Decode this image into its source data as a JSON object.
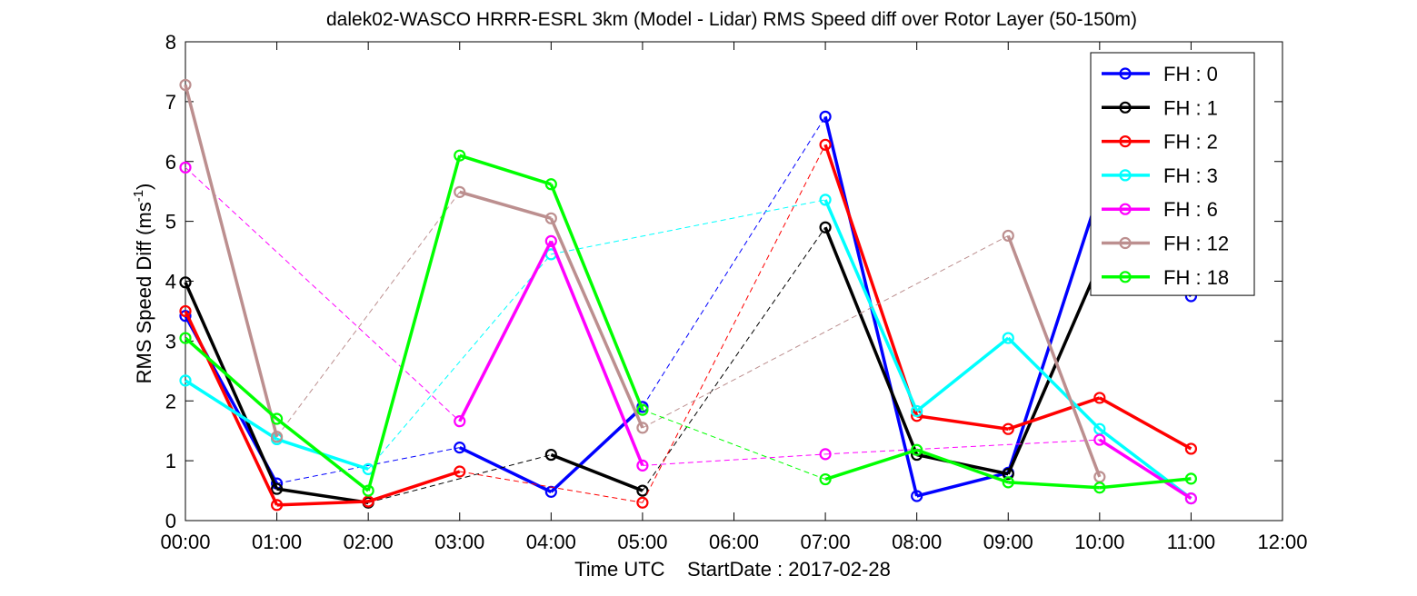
{
  "chart_data": {
    "type": "line",
    "title": "dalek02-WASCO HRRR-ESRL 3km (Model - Lidar) RMS Speed diff over Rotor Layer (50-150m)",
    "xlabel": "Time UTC    StartDate : 2017-02-28",
    "ylabel": "RMS Speed Diff (ms",
    "ylabel_sup": "-1",
    "ylabel_suffix": ")",
    "xlim": [
      0,
      12
    ],
    "ylim": [
      0,
      8
    ],
    "xticks": [
      0,
      1,
      2,
      3,
      4,
      5,
      6,
      7,
      8,
      9,
      10,
      11,
      12
    ],
    "xtick_labels": [
      "00:00",
      "01:00",
      "02:00",
      "03:00",
      "04:00",
      "05:00",
      "06:00",
      "07:00",
      "08:00",
      "09:00",
      "10:00",
      "11:00",
      "12:00"
    ],
    "yticks": [
      0,
      1,
      2,
      3,
      4,
      5,
      6,
      7,
      8
    ],
    "ytick_labels": [
      "0",
      "1",
      "2",
      "3",
      "4",
      "5",
      "6",
      "7",
      "8"
    ],
    "grid": false,
    "legend_position": "top-right",
    "series": [
      {
        "name": "FH : 0",
        "color": "#0000ff",
        "x": [
          0,
          1,
          2,
          3,
          4,
          5,
          6,
          7,
          8,
          9,
          10,
          11
        ],
        "values": [
          3.42,
          0.62,
          null,
          1.22,
          0.48,
          1.9,
          null,
          6.75,
          0.41,
          0.8,
          5.5,
          3.75
        ]
      },
      {
        "name": "FH : 1",
        "color": "#000000",
        "x": [
          0,
          1,
          2,
          3,
          4,
          5,
          6,
          7,
          8,
          9,
          10,
          11
        ],
        "values": [
          3.98,
          0.53,
          0.3,
          null,
          1.1,
          0.5,
          null,
          4.9,
          1.1,
          0.78,
          4.3,
          null
        ]
      },
      {
        "name": "FH : 2",
        "color": "#ff0000",
        "x": [
          0,
          1,
          2,
          3,
          4,
          5,
          6,
          7,
          8,
          9,
          10,
          11
        ],
        "values": [
          3.5,
          0.26,
          0.32,
          0.82,
          null,
          0.3,
          null,
          6.28,
          1.75,
          1.53,
          2.05,
          1.2
        ]
      },
      {
        "name": "FH : 3",
        "color": "#00ffff",
        "x": [
          0,
          1,
          2,
          3,
          4,
          5,
          6,
          7,
          8,
          9,
          10,
          11
        ],
        "values": [
          2.34,
          1.36,
          0.86,
          null,
          4.45,
          null,
          null,
          5.36,
          1.83,
          3.05,
          1.53,
          0.37
        ]
      },
      {
        "name": "FH : 6",
        "color": "#ff00ff",
        "x": [
          0,
          1,
          2,
          3,
          4,
          5,
          6,
          7,
          8,
          9,
          10,
          11
        ],
        "values": [
          5.9,
          null,
          null,
          1.66,
          4.67,
          0.92,
          null,
          1.11,
          null,
          null,
          1.35,
          0.37
        ]
      },
      {
        "name": "FH : 12",
        "color": "#bc8f8f",
        "x": [
          0,
          1,
          2,
          3,
          4,
          5,
          6,
          7,
          8,
          9,
          10,
          11
        ],
        "values": [
          7.28,
          1.4,
          null,
          5.49,
          5.05,
          1.55,
          null,
          null,
          null,
          4.76,
          0.73,
          null
        ]
      },
      {
        "name": "FH : 18",
        "color": "#00ff00",
        "x": [
          0,
          1,
          2,
          3,
          4,
          5,
          6,
          7,
          8,
          9,
          10,
          11
        ],
        "values": [
          3.05,
          1.7,
          0.5,
          6.1,
          5.62,
          1.85,
          null,
          0.69,
          1.18,
          0.64,
          0.55,
          0.7
        ]
      }
    ]
  }
}
